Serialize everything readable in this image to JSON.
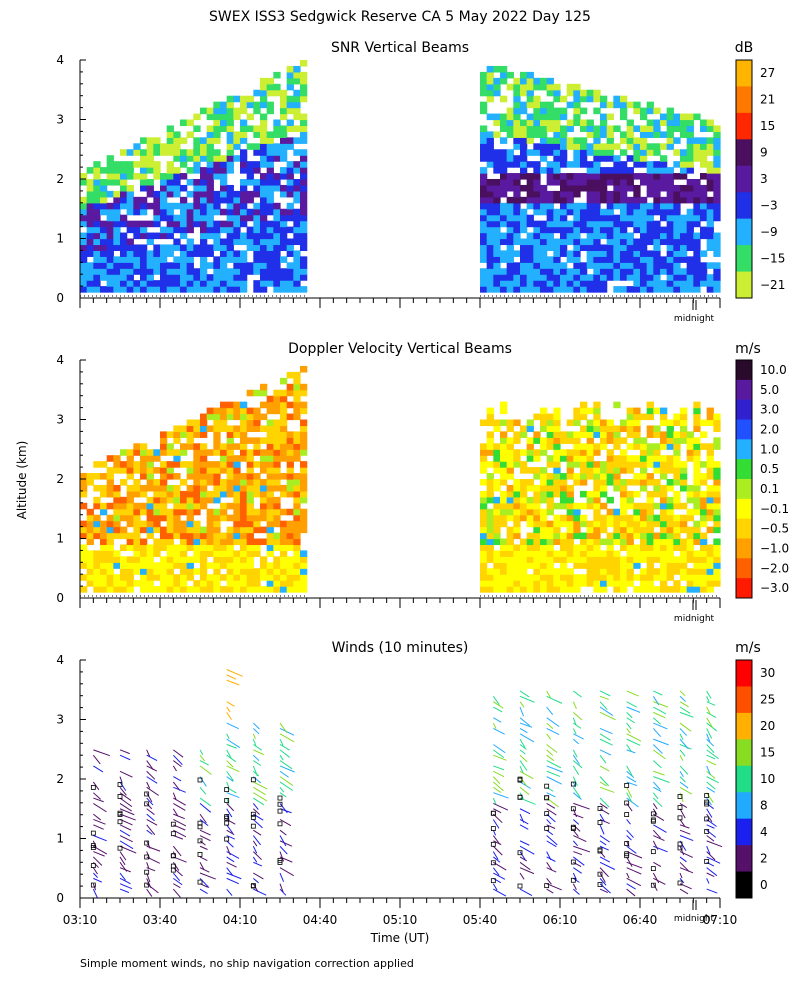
{
  "title": "SWEX ISS3 Sedgwick Reserve CA   5 May 2022 Day 125",
  "footnote": "Simple moment winds, no ship navigation correction applied",
  "y_axis_label": "Altitude (km)",
  "x_axis_label": "Time (UT)",
  "midnight_label": "midnight",
  "chart_data": [
    {
      "type": "heatmap",
      "title": "SNR Vertical Beams",
      "unit": "dB",
      "xlim": [
        "03:10",
        "07:10"
      ],
      "ylim": [
        0,
        4
      ],
      "y_ticks": [
        "0",
        "1",
        "2",
        "3",
        "4"
      ],
      "colorbar": {
        "labels": [
          "27",
          "21",
          "15",
          "9",
          "3",
          "−3",
          "−9",
          "−15",
          "−21"
        ],
        "colors": [
          "#ffb400",
          "#ff7800",
          "#ff2800",
          "#4a0f5e",
          "#5a1aa0",
          "#2030e8",
          "#22b0ff",
          "#33dd66",
          "#ccee33"
        ]
      },
      "data_segments": [
        [
          "03:10",
          "04:35"
        ],
        [
          "05:40",
          "07:10"
        ]
      ]
    },
    {
      "type": "heatmap",
      "title": "Doppler Velocity Vertical Beams",
      "unit": "m/s",
      "xlim": [
        "03:10",
        "07:10"
      ],
      "ylim": [
        0,
        4
      ],
      "y_ticks": [
        "0",
        "1",
        "2",
        "3",
        "4"
      ],
      "colorbar": {
        "labels": [
          "10.0",
          "5.0",
          "3.0",
          "2.0",
          "1.0",
          "0.5",
          "0.1",
          "−0.1",
          "−0.5",
          "−1.0",
          "−2.0",
          "−3.0"
        ],
        "colors": [
          "#2a0a2a",
          "#5a1aa0",
          "#3020d0",
          "#2050ff",
          "#22b0ff",
          "#33dd33",
          "#aaee22",
          "#ffff00",
          "#ffd400",
          "#ffa000",
          "#ff6000",
          "#ff1a00"
        ]
      },
      "data_segments": [
        [
          "03:10",
          "04:35"
        ],
        [
          "05:40",
          "07:10"
        ]
      ]
    },
    {
      "type": "scatter",
      "title": "Winds (10 minutes)",
      "unit": "m/s",
      "xlim": [
        "03:10",
        "07:10"
      ],
      "ylim": [
        0,
        4
      ],
      "y_ticks": [
        "0",
        "1",
        "2",
        "3",
        "4"
      ],
      "x_ticks": [
        "03:10",
        "03:40",
        "04:10",
        "04:40",
        "05:10",
        "05:40",
        "06:10",
        "06:40",
        "07:10"
      ],
      "colorbar": {
        "labels": [
          "30",
          "25",
          "20",
          "15",
          "10",
          "8",
          "4",
          "2",
          "0"
        ],
        "colors": [
          "#ff0000",
          "#ff5000",
          "#ffb000",
          "#88dd22",
          "#22dd88",
          "#22aaff",
          "#1a20ee",
          "#55106a",
          "#000000"
        ]
      },
      "profile_times": [
        "03:15",
        "03:25",
        "03:35",
        "03:45",
        "03:55",
        "04:05",
        "04:15",
        "04:25",
        "05:45",
        "05:55",
        "06:05",
        "06:15",
        "06:25",
        "06:35",
        "06:45",
        "06:55",
        "07:05"
      ]
    }
  ]
}
